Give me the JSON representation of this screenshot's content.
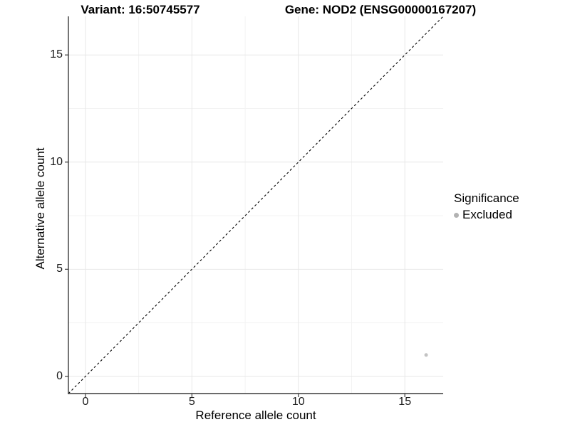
{
  "titles": {
    "variant": "Variant: 16:50745577",
    "gene": "Gene: NOD2 (ENSG00000167207)"
  },
  "legend": {
    "title": "Significance",
    "items": [
      {
        "label": "Excluded",
        "marker": "circle-icon",
        "color": "#b2b2b2"
      }
    ]
  },
  "chart_data": {
    "type": "scatter",
    "title": "Variant: 16:50745577 — Gene: NOD2 (ENSG00000167207)",
    "xlabel": "Reference allele count",
    "ylabel": "Alternative allele count",
    "xlim": [
      -0.8,
      16.8
    ],
    "ylim": [
      -0.8,
      16.8
    ],
    "x_ticks": [
      0,
      5,
      10,
      15
    ],
    "x_tick_labels": [
      "0",
      "5",
      "10",
      "15"
    ],
    "y_ticks": [
      0,
      5,
      10,
      15
    ],
    "y_tick_labels": [
      "0",
      "5",
      "10",
      "15"
    ],
    "minor_ticks": [
      2.5,
      7.5,
      12.5
    ],
    "grid": true,
    "legend_position": "right",
    "series": [
      {
        "name": "Excluded",
        "color": "#c3c3c3",
        "points": [
          {
            "x": 16,
            "y": 1
          }
        ]
      }
    ],
    "reference_line": {
      "type": "identity",
      "equation": "y = x",
      "style": "dashed",
      "color": "#000000"
    },
    "colors": {
      "grid_major": "#e7e7e7",
      "grid_minor": "#f3f3f3",
      "axis": "#3a3a3a",
      "background": "#ffffff"
    }
  }
}
